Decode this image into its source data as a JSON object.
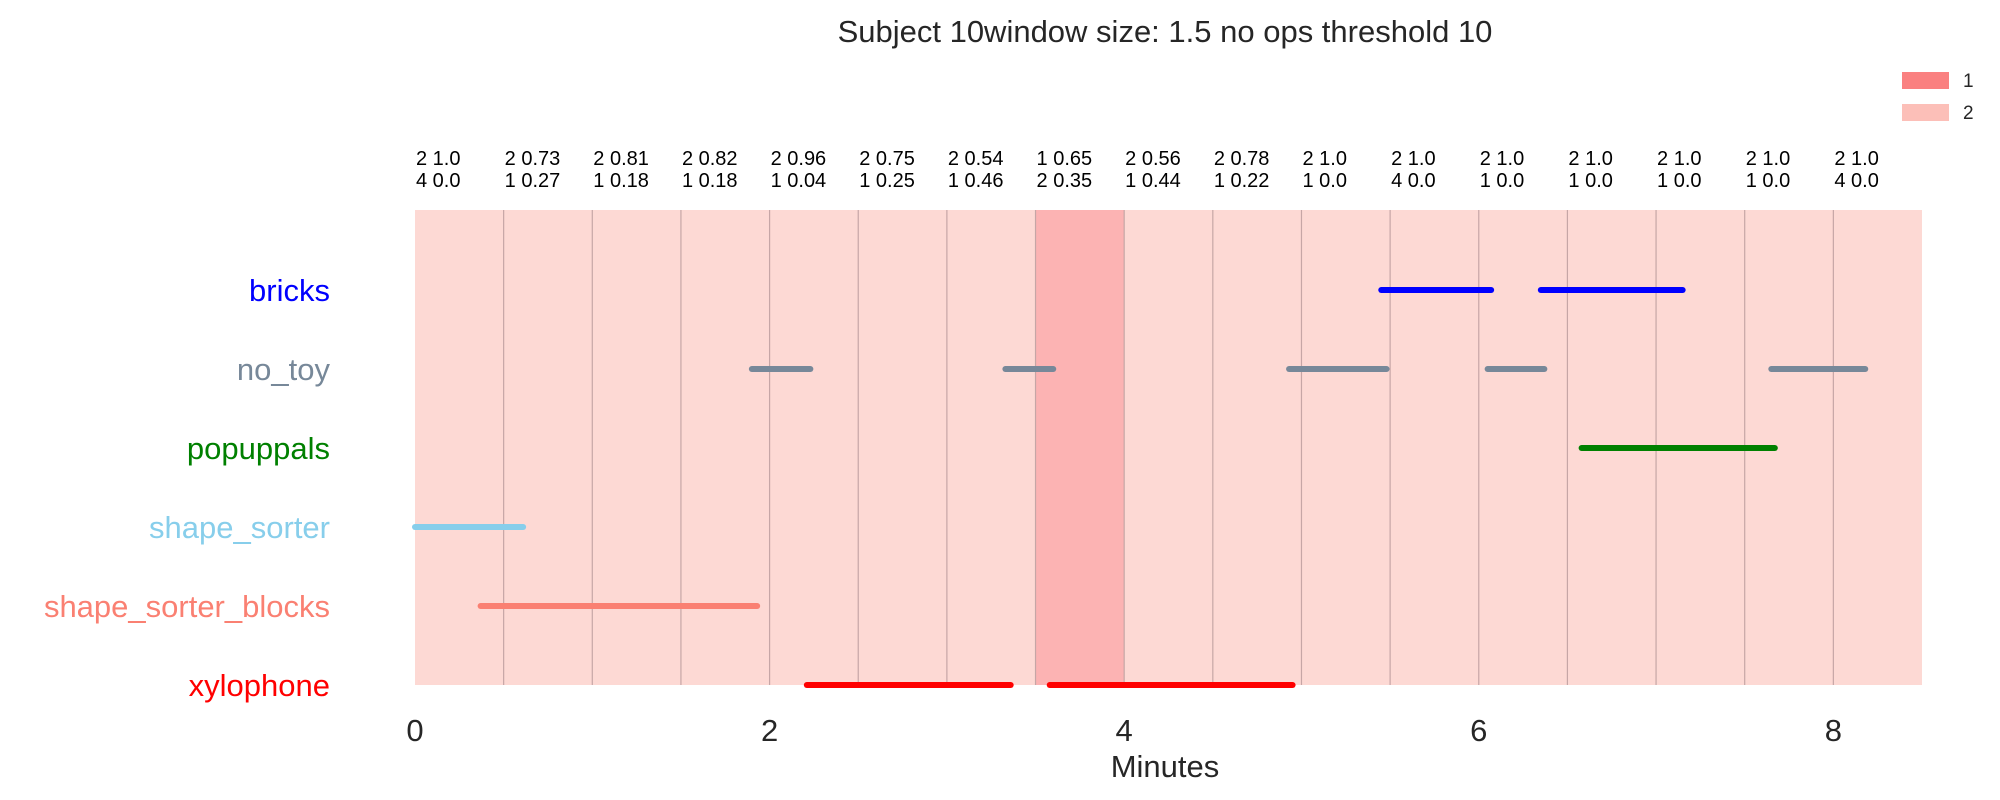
{
  "chart_data": {
    "type": "timeline",
    "title": "Subject 10window size: 1.5 no ops threshold 10",
    "xlabel": "Minutes",
    "xlim": [
      0,
      8.5
    ],
    "xticks": [
      0,
      2,
      4,
      6,
      8
    ],
    "window_size_minutes": 0.5,
    "legend": {
      "position": "top-right",
      "entries": [
        {
          "label": "1",
          "color": "#fa8080"
        },
        {
          "label": "2",
          "color": "#fcbfb8"
        }
      ]
    },
    "windows": [
      {
        "start": 0.0,
        "end": 0.5,
        "state": "2",
        "line1": "2 1.0",
        "line2": "4 0.0"
      },
      {
        "start": 0.5,
        "end": 1.0,
        "state": "2",
        "line1": "2 0.73",
        "line2": "1 0.27"
      },
      {
        "start": 1.0,
        "end": 1.5,
        "state": "2",
        "line1": "2 0.81",
        "line2": "1 0.18"
      },
      {
        "start": 1.5,
        "end": 2.0,
        "state": "2",
        "line1": "2 0.82",
        "line2": "1 0.18"
      },
      {
        "start": 2.0,
        "end": 2.5,
        "state": "2",
        "line1": "2 0.96",
        "line2": "1 0.04"
      },
      {
        "start": 2.5,
        "end": 3.0,
        "state": "2",
        "line1": "2 0.75",
        "line2": "1 0.25"
      },
      {
        "start": 3.0,
        "end": 3.5,
        "state": "2",
        "line1": "2 0.54",
        "line2": "1 0.46"
      },
      {
        "start": 3.5,
        "end": 4.0,
        "state": "1",
        "line1": "1 0.65",
        "line2": "2 0.35"
      },
      {
        "start": 4.0,
        "end": 4.5,
        "state": "2",
        "line1": "2 0.56",
        "line2": "1 0.44"
      },
      {
        "start": 4.5,
        "end": 5.0,
        "state": "2",
        "line1": "2 0.78",
        "line2": "1 0.22"
      },
      {
        "start": 5.0,
        "end": 5.5,
        "state": "2",
        "line1": "2 1.0",
        "line2": "1 0.0"
      },
      {
        "start": 5.5,
        "end": 6.0,
        "state": "2",
        "line1": "2 1.0",
        "line2": "4 0.0"
      },
      {
        "start": 6.0,
        "end": 6.5,
        "state": "2",
        "line1": "2 1.0",
        "line2": "1 0.0"
      },
      {
        "start": 6.5,
        "end": 7.0,
        "state": "2",
        "line1": "2 1.0",
        "line2": "1 0.0"
      },
      {
        "start": 7.0,
        "end": 7.5,
        "state": "2",
        "line1": "2 1.0",
        "line2": "1 0.0"
      },
      {
        "start": 7.5,
        "end": 8.0,
        "state": "2",
        "line1": "2 1.0",
        "line2": "1 0.0"
      },
      {
        "start": 8.0,
        "end": 8.5,
        "state": "2",
        "line1": "2 1.0",
        "line2": "4 0.0"
      }
    ],
    "toys": [
      {
        "name": "bricks",
        "color": "#0000ff",
        "segments": [
          [
            5.45,
            6.07
          ],
          [
            6.35,
            7.15
          ]
        ]
      },
      {
        "name": "no_toy",
        "color": "#778899",
        "segments": [
          [
            1.9,
            2.23
          ],
          [
            3.33,
            3.6
          ],
          [
            4.93,
            5.48
          ],
          [
            6.05,
            6.37
          ],
          [
            7.65,
            8.18
          ]
        ]
      },
      {
        "name": "popuppals",
        "color": "#008000",
        "segments": [
          [
            6.58,
            7.67
          ]
        ]
      },
      {
        "name": "shape_sorter",
        "color": "#87ceeb",
        "segments": [
          [
            0.0,
            0.61
          ]
        ]
      },
      {
        "name": "shape_sorter_blocks",
        "color": "#fa8072",
        "segments": [
          [
            0.37,
            1.93
          ]
        ]
      },
      {
        "name": "xylophone",
        "color": "#ff0000",
        "segments": [
          [
            2.21,
            3.36
          ],
          [
            3.58,
            4.95
          ]
        ]
      }
    ]
  }
}
